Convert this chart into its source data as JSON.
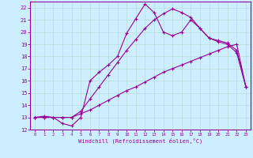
{
  "xlabel": "Windchill (Refroidissement éolien,°C)",
  "background_color": "#cceeff",
  "grid_color": "#aaddcc",
  "line_color": "#990099",
  "xlim": [
    -0.5,
    23.5
  ],
  "ylim": [
    12,
    22.5
  ],
  "xticks": [
    0,
    1,
    2,
    3,
    4,
    5,
    6,
    7,
    8,
    9,
    10,
    11,
    12,
    13,
    14,
    15,
    16,
    17,
    18,
    19,
    20,
    21,
    22,
    23
  ],
  "yticks": [
    12,
    13,
    14,
    15,
    16,
    17,
    18,
    19,
    20,
    21,
    22
  ],
  "line1_x": [
    0,
    1,
    2,
    3,
    4,
    5,
    6,
    7,
    8,
    9,
    10,
    11,
    12,
    13,
    14,
    15,
    16,
    17,
    18,
    19,
    20,
    21,
    22,
    23
  ],
  "line1_y": [
    13.0,
    13.0,
    13.0,
    13.0,
    13.0,
    13.3,
    13.6,
    14.0,
    14.4,
    14.8,
    15.2,
    15.5,
    15.9,
    16.3,
    16.7,
    17.0,
    17.3,
    17.6,
    17.9,
    18.2,
    18.5,
    18.8,
    19.0,
    15.5
  ],
  "line2_x": [
    0,
    1,
    2,
    3,
    4,
    5,
    6,
    7,
    8,
    9,
    10,
    11,
    12,
    13,
    14,
    15,
    16,
    17,
    18,
    19,
    20,
    21,
    22,
    23
  ],
  "line2_y": [
    13.0,
    13.0,
    13.0,
    13.0,
    13.0,
    13.5,
    14.5,
    15.5,
    16.5,
    17.5,
    18.5,
    19.4,
    20.3,
    21.0,
    21.5,
    21.9,
    21.6,
    21.2,
    20.3,
    19.5,
    19.3,
    19.1,
    18.5,
    15.5
  ],
  "line3_x": [
    0,
    1,
    2,
    3,
    4,
    5,
    6,
    7,
    8,
    9,
    10,
    11,
    12,
    13,
    14,
    15,
    16,
    17,
    18,
    19,
    20,
    21,
    22,
    23
  ],
  "line3_y": [
    13.0,
    13.1,
    13.0,
    12.5,
    12.3,
    13.0,
    16.0,
    16.7,
    17.3,
    18.0,
    19.9,
    21.1,
    22.3,
    21.6,
    20.0,
    19.7,
    20.0,
    21.0,
    20.3,
    19.5,
    19.2,
    19.0,
    18.3,
    15.5
  ]
}
